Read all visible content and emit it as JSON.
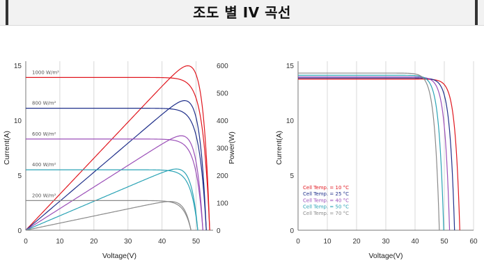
{
  "header": {
    "title": "조도 별 IV 곡선"
  },
  "colors": {
    "red": "#e0161e",
    "navy": "#1f2f8a",
    "purple": "#9b4fb8",
    "teal": "#2aa3b5",
    "gray": "#8a8a8a"
  },
  "chart_data": [
    {
      "type": "line",
      "xlabel": "Voltage(V)",
      "ylabel": "Current(A)",
      "ylabel2": "Power(W)",
      "xlim": [
        0,
        55
      ],
      "ylim": [
        0,
        15
      ],
      "ylim2": [
        0,
        600
      ],
      "xticks": [
        "0",
        "10",
        "20",
        "30",
        "40",
        "50"
      ],
      "yticks": [
        "0",
        "5",
        "10",
        "15"
      ],
      "yticks2": [
        "0",
        "100",
        "200",
        "300",
        "400",
        "500",
        "600"
      ],
      "grid": "vertical",
      "series": [
        {
          "name": "1000 W/m²",
          "color": "red",
          "isc": 13.9,
          "voc": 54,
          "vmp": 45.5,
          "pmax": 588
        },
        {
          "name": "800 W/m²",
          "color": "navy",
          "isc": 11.1,
          "voc": 53,
          "vmp": 44.5,
          "pmax": 463
        },
        {
          "name": "600 W/m²",
          "color": "purple",
          "isc": 8.3,
          "voc": 52,
          "vmp": 43.5,
          "pmax": 337
        },
        {
          "name": "400 W/m²",
          "color": "teal",
          "isc": 5.5,
          "voc": 50.5,
          "vmp": 42,
          "pmax": 218
        },
        {
          "name": "200 W/m²",
          "color": "gray",
          "isc": 2.7,
          "voc": 48.5,
          "vmp": 40,
          "pmax": 102
        }
      ]
    },
    {
      "type": "line",
      "xlabel": "Voltage(V)",
      "ylabel": "Current(A)",
      "xlim": [
        0,
        60
      ],
      "ylim": [
        0,
        15
      ],
      "xticks": [
        "0",
        "10",
        "20",
        "30",
        "40",
        "50",
        "60"
      ],
      "yticks": [
        "0",
        "5",
        "10",
        "15"
      ],
      "grid": "vertical",
      "legend": "lower-left",
      "series": [
        {
          "name": "Cell Temp. = 10 °C",
          "color": "red",
          "isc": 13.75,
          "voc": 55.3
        },
        {
          "name": "Cell Temp. = 25 °C",
          "color": "navy",
          "isc": 13.85,
          "voc": 53.5
        },
        {
          "name": "Cell Temp. = 40 °C",
          "color": "purple",
          "isc": 13.95,
          "voc": 51.8
        },
        {
          "name": "Cell Temp. = 50 °C",
          "color": "teal",
          "isc": 14.1,
          "voc": 49.8
        },
        {
          "name": "Cell Temp. = 70 °C",
          "color": "gray",
          "isc": 14.3,
          "voc": 48.3
        }
      ]
    }
  ]
}
